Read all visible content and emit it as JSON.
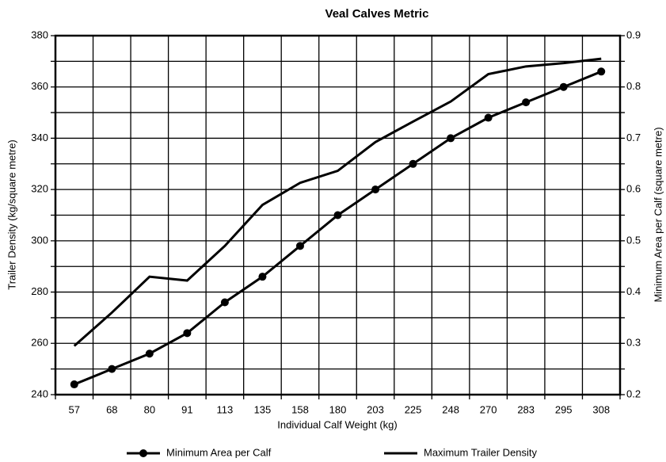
{
  "chart_data": {
    "type": "line",
    "title": "Veal Calves Metric",
    "x_label": "Individual Calf Weight (kg)",
    "y_label": "Trailer Density (kg/square metre)",
    "y2_label": "Minimum Area per Calf (square metre)",
    "categories": [
      "57",
      "68",
      "80",
      "91",
      "113",
      "135",
      "158",
      "180",
      "203",
      "225",
      "248",
      "270",
      "283",
      "295",
      "308"
    ],
    "ylim": [
      240,
      380
    ],
    "yticks": [
      240,
      260,
      280,
      300,
      320,
      340,
      360,
      380
    ],
    "y2lim": [
      0.2,
      0.9
    ],
    "y2ticks": [
      0.2,
      0.3,
      0.4,
      0.5,
      0.6,
      0.7,
      0.8,
      0.9
    ],
    "minor_yticks": [
      250,
      270,
      290,
      310,
      330,
      350,
      370
    ],
    "grid": true,
    "legend": "bottom",
    "series": [
      {
        "name": "Minimum Area per Calf",
        "color": "#000000",
        "marker": "circle",
        "axis": "y2",
        "values": [
          0.22,
          0.25,
          0.28,
          0.32,
          0.38,
          0.43,
          0.49,
          0.55,
          0.6,
          0.65,
          0.7,
          0.74,
          0.77,
          0.8,
          0.83
        ]
      },
      {
        "name": "Maximum Trailer Density",
        "color": "#000000",
        "marker": "none",
        "values": [
          259,
          272,
          286,
          284.5,
          298,
          314,
          322.6,
          327.3,
          338.5,
          346.5,
          354.3,
          365,
          368,
          369.3,
          371
        ]
      }
    ]
  }
}
